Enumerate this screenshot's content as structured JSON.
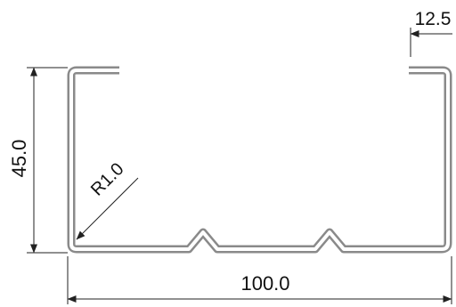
{
  "colors": {
    "profile_stroke": "#8a8a8a",
    "profile_fill": "#ffffff",
    "dimension_line": "#222222",
    "text": "#111111"
  },
  "dimensions": {
    "flange_width": "12.5",
    "height": "45.0",
    "radius": "R1.0",
    "total_width": "100.0"
  }
}
